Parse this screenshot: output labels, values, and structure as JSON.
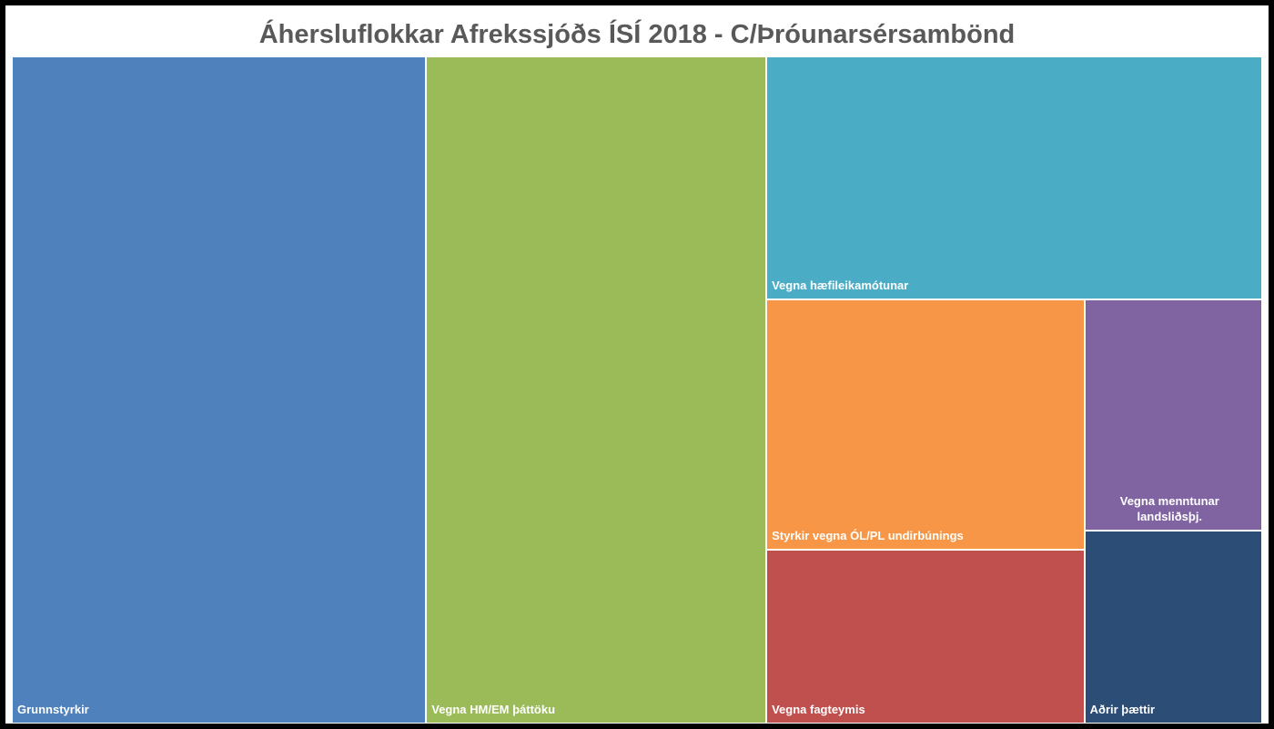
{
  "chart_data": {
    "type": "treemap",
    "title": "Áhersluflokkar Afrekssjóðs ÍSÍ 2018 - C/Þróunarsérsambönd",
    "categories": [
      "Grunnstyrkir",
      "Vegna HM/EM þáttöku",
      "Vegna hæfileikamótunar",
      "Styrkir vegna ÓL/PL undirbúnings",
      "Vegna fagteymis",
      "Vegna menntunar landsliðsþj.",
      "Aðrir þættir"
    ],
    "values": [
      33.0,
      27.1,
      14.4,
      9.5,
      6.6,
      4.9,
      4.1
    ],
    "colors": [
      "#4f81bd",
      "#9bbb59",
      "#4bacc6",
      "#f79646",
      "#c0504d",
      "#8064a2",
      "#2c4d75"
    ]
  }
}
